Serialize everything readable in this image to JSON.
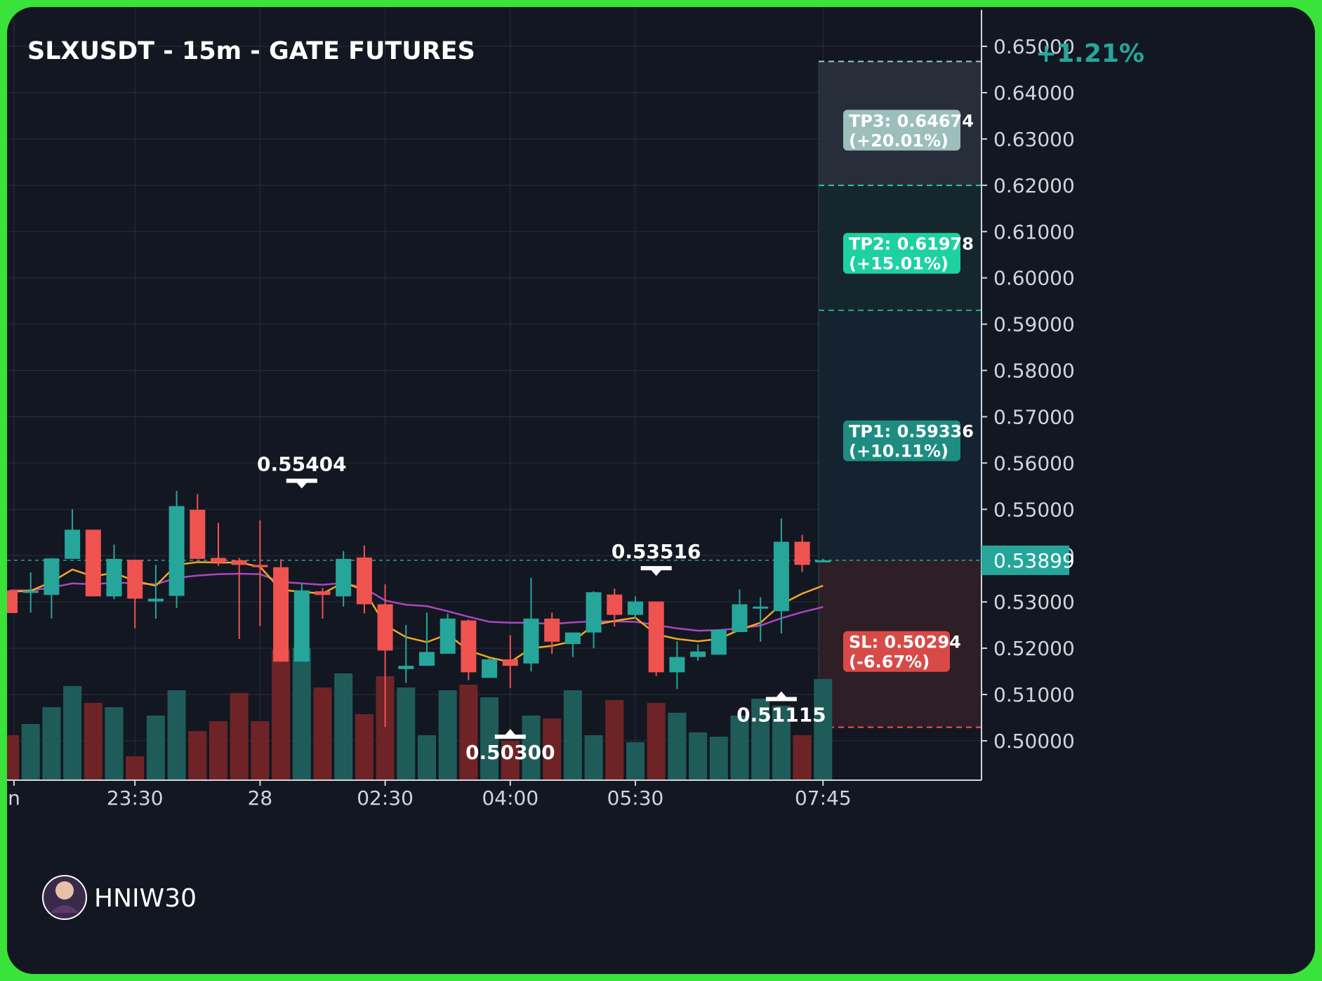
{
  "header": {
    "title": "SLXUSDT - 15m - GATE FUTURES",
    "change_pct": "+1.21%"
  },
  "watermark": {
    "handle": "HNIW30"
  },
  "colors": {
    "background": "#131722",
    "frame": "#39e339",
    "up": "#26a69a",
    "down": "#ef5350",
    "ema_fast": "#f5a623",
    "ema_slow": "#ab47bc",
    "grid": "#2a2e39",
    "tp3_box": "#b2d8d4",
    "tp2_box": "#1dd1a1",
    "tp1_box": "#1e8c80",
    "sl_box": "#d84a47"
  },
  "targets": [
    {
      "id": "tp3",
      "label_line1": "TP3: 0.64674",
      "label_line2": "(+20.01%)",
      "price": 0.64674
    },
    {
      "id": "tp2",
      "label_line1": "TP2: 0.61978",
      "label_line2": "(+15.01%)",
      "price": 0.61978
    },
    {
      "id": "tp1",
      "label_line1": "TP1: 0.59336",
      "label_line2": "(+10.11%)",
      "price": 0.59336
    }
  ],
  "stop_loss": {
    "label_line1": "SL: 0.50294",
    "label_line2": "(-6.67%)",
    "price": 0.50294
  },
  "current_price": {
    "label": "0.53899",
    "price": 0.53899
  },
  "chart_data": {
    "type": "candlestick",
    "title": "SLXUSDT - 15m - GATE FUTURES",
    "y_axis": {
      "ticks": [
        "0.65000",
        "0.64000",
        "0.63000",
        "0.62000",
        "0.61000",
        "0.60000",
        "0.59000",
        "0.58000",
        "0.57000",
        "0.56000",
        "0.55000",
        "0.54000",
        "0.53000",
        "0.52000",
        "0.51000",
        "0.50000"
      ],
      "ylim": [
        0.4915,
        0.6585
      ]
    },
    "x_axis": {
      "ticks": [
        {
          "label": "n",
          "index": -5.8
        },
        {
          "label": "23:30",
          "index": 0
        },
        {
          "label": "28",
          "index": 6
        },
        {
          "label": "02:30",
          "index": 12
        },
        {
          "label": "04:00",
          "index": 18
        },
        {
          "label": "05:30",
          "index": 24
        },
        {
          "label": "07:45",
          "index": 33
        }
      ],
      "first_index": -6,
      "last_index": 32
    },
    "candles": [
      {
        "o": 0.5325,
        "h": 0.5325,
        "l": 0.5276,
        "c": 0.5276
      },
      {
        "o": 0.5322,
        "h": 0.5364,
        "l": 0.5277,
        "c": 0.5324
      },
      {
        "o": 0.5315,
        "h": 0.5395,
        "l": 0.5264,
        "c": 0.5394
      },
      {
        "o": 0.5393,
        "h": 0.55,
        "l": 0.5393,
        "c": 0.5456
      },
      {
        "o": 0.5456,
        "h": 0.5456,
        "l": 0.5312,
        "c": 0.5312
      },
      {
        "o": 0.5312,
        "h": 0.5424,
        "l": 0.5306,
        "c": 0.5393
      },
      {
        "o": 0.5391,
        "h": 0.5391,
        "l": 0.5243,
        "c": 0.5307
      },
      {
        "o": 0.5301,
        "h": 0.538,
        "l": 0.5264,
        "c": 0.5307
      },
      {
        "o": 0.5313,
        "h": 0.554,
        "l": 0.5287,
        "c": 0.5507
      },
      {
        "o": 0.5499,
        "h": 0.5533,
        "l": 0.5393,
        "c": 0.5393
      },
      {
        "o": 0.5395,
        "h": 0.5471,
        "l": 0.5378,
        "c": 0.5385
      },
      {
        "o": 0.539,
        "h": 0.5395,
        "l": 0.522,
        "c": 0.538
      },
      {
        "o": 0.538,
        "h": 0.5476,
        "l": 0.5248,
        "c": 0.5375
      },
      {
        "o": 0.5375,
        "h": 0.5392,
        "l": 0.5171,
        "c": 0.5171
      },
      {
        "o": 0.5171,
        "h": 0.534,
        "l": 0.5171,
        "c": 0.5325
      },
      {
        "o": 0.5323,
        "h": 0.533,
        "l": 0.5264,
        "c": 0.5315
      },
      {
        "o": 0.5312,
        "h": 0.541,
        "l": 0.529,
        "c": 0.5393
      },
      {
        "o": 0.5396,
        "h": 0.5422,
        "l": 0.5275,
        "c": 0.5295
      },
      {
        "o": 0.5295,
        "h": 0.5338,
        "l": 0.503,
        "c": 0.5195
      },
      {
        "o": 0.5155,
        "h": 0.525,
        "l": 0.5125,
        "c": 0.5162
      },
      {
        "o": 0.5162,
        "h": 0.5277,
        "l": 0.5162,
        "c": 0.5192
      },
      {
        "o": 0.5188,
        "h": 0.5275,
        "l": 0.5188,
        "c": 0.5264
      },
      {
        "o": 0.526,
        "h": 0.5262,
        "l": 0.5131,
        "c": 0.5148
      },
      {
        "o": 0.5136,
        "h": 0.5178,
        "l": 0.5136,
        "c": 0.5176
      },
      {
        "o": 0.5176,
        "h": 0.5228,
        "l": 0.5114,
        "c": 0.5162
      },
      {
        "o": 0.5167,
        "h": 0.5352,
        "l": 0.515,
        "c": 0.5264
      },
      {
        "o": 0.5264,
        "h": 0.5277,
        "l": 0.5188,
        "c": 0.5214
      },
      {
        "o": 0.5209,
        "h": 0.5234,
        "l": 0.5181,
        "c": 0.5234
      },
      {
        "o": 0.5234,
        "h": 0.5323,
        "l": 0.52,
        "c": 0.5321
      },
      {
        "o": 0.5316,
        "h": 0.5329,
        "l": 0.5247,
        "c": 0.5272
      },
      {
        "o": 0.5272,
        "h": 0.5312,
        "l": 0.5264,
        "c": 0.5301
      },
      {
        "o": 0.5301,
        "h": 0.5301,
        "l": 0.514,
        "c": 0.5148
      },
      {
        "o": 0.5148,
        "h": 0.5215,
        "l": 0.5112,
        "c": 0.5181
      },
      {
        "o": 0.5181,
        "h": 0.5208,
        "l": 0.5173,
        "c": 0.5193
      },
      {
        "o": 0.5186,
        "h": 0.5241,
        "l": 0.5186,
        "c": 0.524
      },
      {
        "o": 0.5235,
        "h": 0.5327,
        "l": 0.5235,
        "c": 0.5295
      },
      {
        "o": 0.529,
        "h": 0.531,
        "l": 0.5214,
        "c": 0.529
      },
      {
        "o": 0.528,
        "h": 0.548,
        "l": 0.5232,
        "c": 0.543
      },
      {
        "o": 0.543,
        "h": 0.5445,
        "l": 0.5365,
        "c": 0.538
      },
      {
        "o": 0.539,
        "h": 0.5393,
        "l": 0.5387,
        "c": 0.539
      }
    ],
    "volume": [
      32,
      40,
      52,
      67,
      55,
      52,
      17,
      46,
      64,
      35,
      42,
      62,
      42,
      93,
      94,
      66,
      76,
      47,
      74,
      66,
      32,
      64,
      68,
      59,
      28,
      46,
      44,
      64,
      32,
      57,
      27,
      55,
      48,
      34,
      31,
      46,
      58,
      53,
      32,
      72
    ],
    "ema_fast": [
      0.5322,
      0.5324,
      0.5343,
      0.537,
      0.5355,
      0.5363,
      0.5345,
      0.5335,
      0.538,
      0.5386,
      0.5385,
      0.5385,
      0.5376,
      0.5326,
      0.5322,
      0.5318,
      0.5342,
      0.5325,
      0.525,
      0.5224,
      0.5213,
      0.523,
      0.5195,
      0.518,
      0.517,
      0.52,
      0.5205,
      0.5215,
      0.525,
      0.5259,
      0.5266,
      0.523,
      0.522,
      0.5215,
      0.522,
      0.524,
      0.5255,
      0.5295,
      0.5318,
      0.5335
    ],
    "ema_slow": [
      0.5325,
      0.5325,
      0.5331,
      0.534,
      0.5338,
      0.5342,
      0.534,
      0.5338,
      0.5352,
      0.5357,
      0.536,
      0.5361,
      0.536,
      0.5343,
      0.534,
      0.5337,
      0.5341,
      0.533,
      0.5303,
      0.5294,
      0.5291,
      0.528,
      0.5268,
      0.5257,
      0.5255,
      0.5255,
      0.5252,
      0.5256,
      0.5258,
      0.5258,
      0.5257,
      0.525,
      0.5243,
      0.5238,
      0.5239,
      0.5243,
      0.5249,
      0.5265,
      0.5278,
      0.5289
    ],
    "annotations": [
      {
        "text": "0.55404",
        "index": 8,
        "price": 0.55404,
        "direction": "down"
      },
      {
        "text": "0.53516",
        "index": 25,
        "price": 0.53516,
        "direction": "down"
      },
      {
        "text": "0.50300",
        "index": 18,
        "price": 0.503,
        "direction": "up"
      },
      {
        "text": "0.51115",
        "index": 31,
        "price": 0.51115,
        "direction": "up"
      }
    ]
  }
}
